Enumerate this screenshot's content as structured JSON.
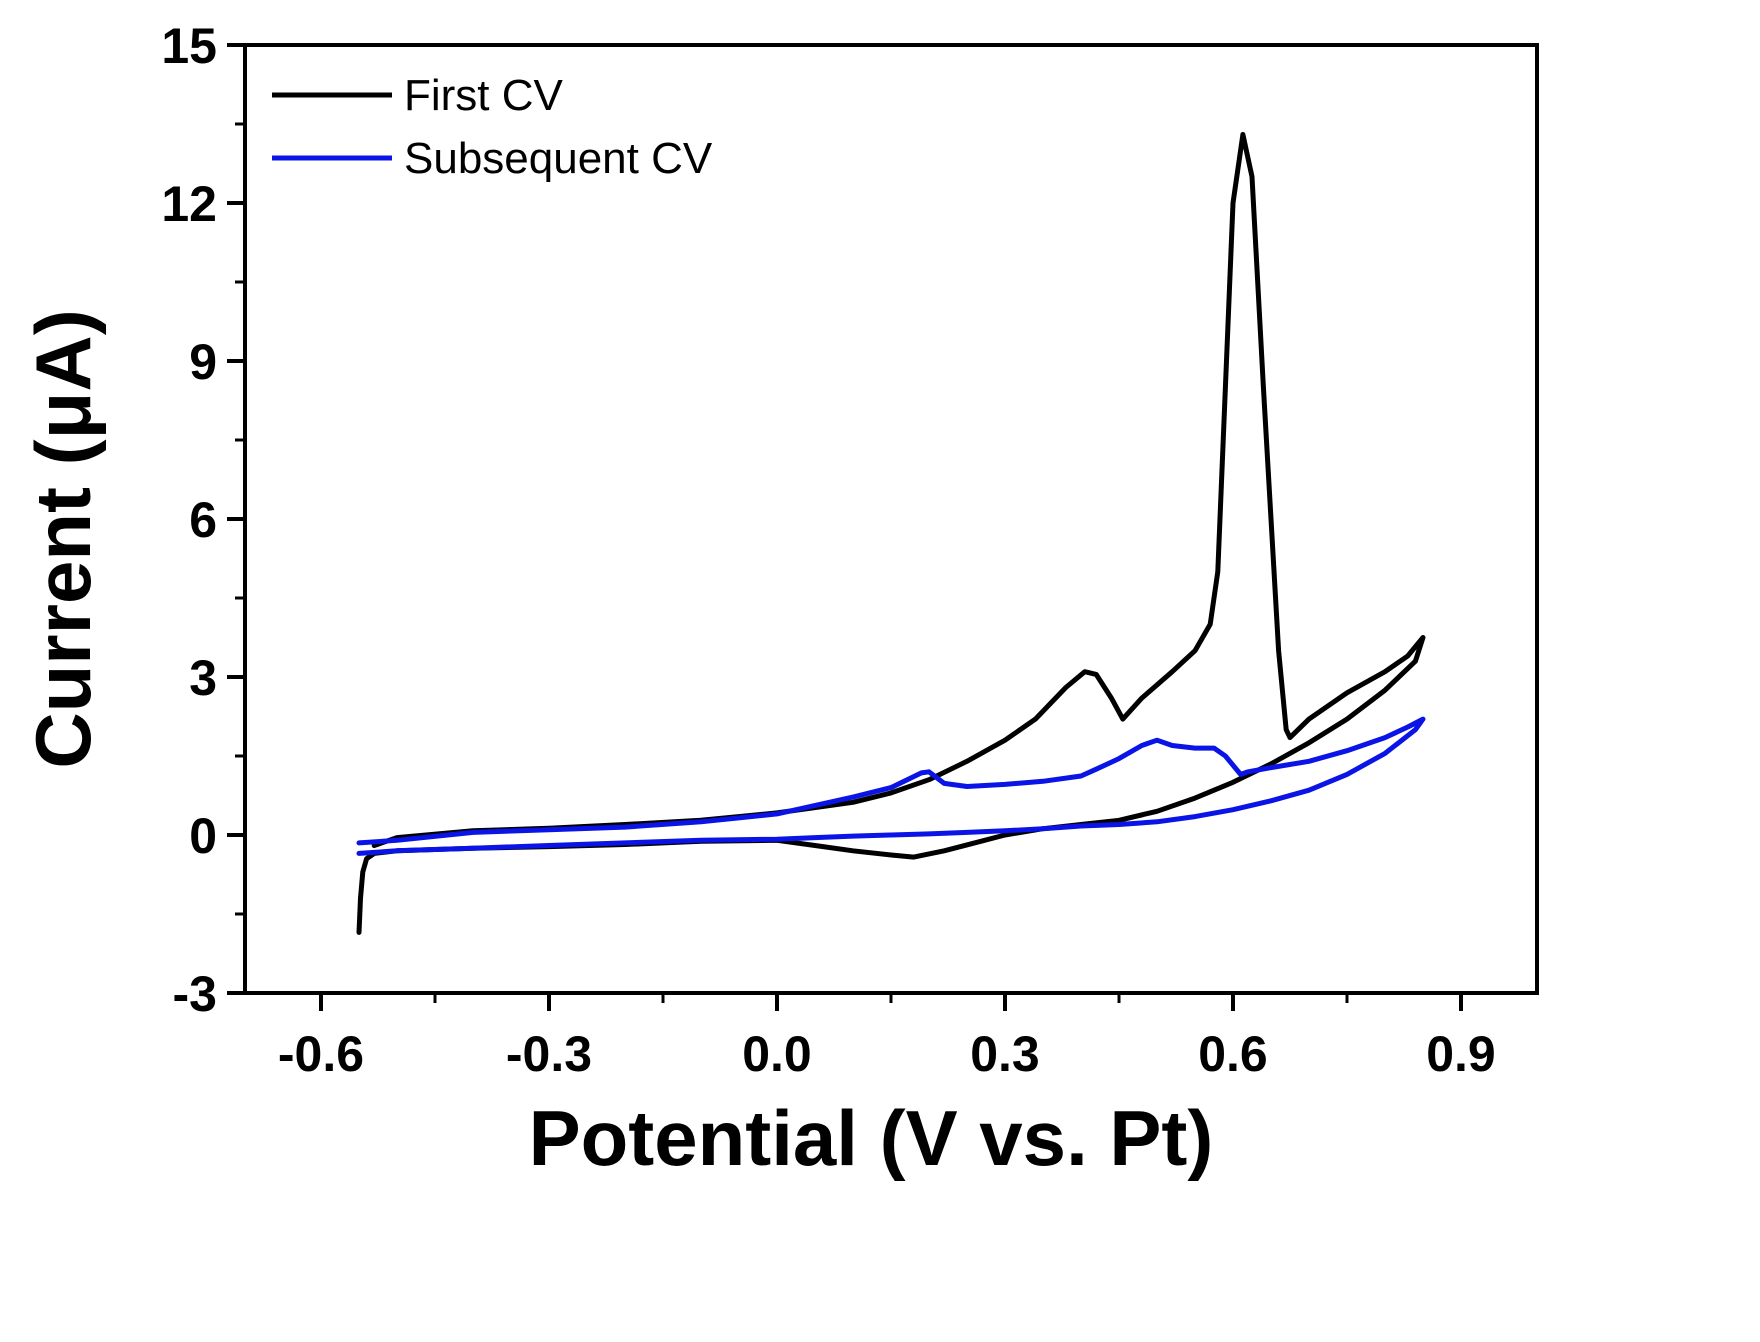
{
  "chart_data": {
    "type": "line",
    "title": "",
    "xlabel": "Potential (V vs. Pt)",
    "ylabel": "Current (μA)",
    "xlim": [
      -0.7,
      1.0
    ],
    "ylim": [
      -3,
      15
    ],
    "xticks": [
      -0.6,
      -0.3,
      0.0,
      0.3,
      0.6,
      0.9
    ],
    "xtick_labels": [
      "-0.6",
      "-0.3",
      "0.0",
      "0.3",
      "0.6",
      "0.9"
    ],
    "yticks": [
      -3,
      0,
      3,
      6,
      9,
      12,
      15
    ],
    "ytick_labels": [
      "-3",
      "0",
      "3",
      "6",
      "9",
      "12",
      "15"
    ],
    "grid": false,
    "legend_position": "top-left",
    "series": [
      {
        "name": "First CV",
        "color": "#000000",
        "points": [
          [
            -0.55,
            -1.85
          ],
          [
            -0.548,
            -1.2
          ],
          [
            -0.545,
            -0.7
          ],
          [
            -0.54,
            -0.45
          ],
          [
            -0.53,
            -0.35
          ],
          [
            -0.5,
            -0.3
          ],
          [
            -0.4,
            -0.25
          ],
          [
            -0.3,
            -0.22
          ],
          [
            -0.2,
            -0.18
          ],
          [
            -0.1,
            -0.12
          ],
          [
            0.0,
            -0.1
          ],
          [
            0.05,
            -0.2
          ],
          [
            0.1,
            -0.3
          ],
          [
            0.15,
            -0.38
          ],
          [
            0.18,
            -0.42
          ],
          [
            0.22,
            -0.3
          ],
          [
            0.26,
            -0.15
          ],
          [
            0.3,
            0.0
          ],
          [
            0.35,
            0.12
          ],
          [
            0.4,
            0.2
          ],
          [
            0.45,
            0.28
          ],
          [
            0.5,
            0.45
          ],
          [
            0.55,
            0.7
          ],
          [
            0.6,
            1.0
          ],
          [
            0.65,
            1.35
          ],
          [
            0.7,
            1.75
          ],
          [
            0.75,
            2.2
          ],
          [
            0.8,
            2.75
          ],
          [
            0.84,
            3.3
          ],
          [
            0.85,
            3.75
          ],
          [
            0.83,
            3.4
          ],
          [
            0.8,
            3.1
          ],
          [
            0.75,
            2.7
          ],
          [
            0.72,
            2.4
          ],
          [
            0.7,
            2.2
          ],
          [
            0.675,
            1.85
          ],
          [
            0.67,
            2.0
          ],
          [
            0.66,
            3.5
          ],
          [
            0.64,
            8.5
          ],
          [
            0.625,
            12.5
          ],
          [
            0.613,
            13.3
          ],
          [
            0.6,
            12.0
          ],
          [
            0.59,
            8.5
          ],
          [
            0.58,
            5.0
          ],
          [
            0.57,
            4.0
          ],
          [
            0.55,
            3.5
          ],
          [
            0.52,
            3.1
          ],
          [
            0.48,
            2.6
          ],
          [
            0.455,
            2.2
          ],
          [
            0.44,
            2.6
          ],
          [
            0.42,
            3.05
          ],
          [
            0.405,
            3.1
          ],
          [
            0.38,
            2.8
          ],
          [
            0.34,
            2.2
          ],
          [
            0.3,
            1.8
          ],
          [
            0.25,
            1.4
          ],
          [
            0.2,
            1.05
          ],
          [
            0.15,
            0.8
          ],
          [
            0.1,
            0.62
          ],
          [
            0.0,
            0.42
          ],
          [
            -0.1,
            0.28
          ],
          [
            -0.2,
            0.2
          ],
          [
            -0.3,
            0.13
          ],
          [
            -0.4,
            0.08
          ],
          [
            -0.5,
            -0.05
          ],
          [
            -0.53,
            -0.2
          ]
        ]
      },
      {
        "name": "Subsequent CV",
        "color": "#0a14e6",
        "points": [
          [
            -0.55,
            -0.35
          ],
          [
            -0.5,
            -0.3
          ],
          [
            -0.4,
            -0.25
          ],
          [
            -0.3,
            -0.2
          ],
          [
            -0.2,
            -0.15
          ],
          [
            -0.1,
            -0.1
          ],
          [
            0.0,
            -0.08
          ],
          [
            0.05,
            -0.05
          ],
          [
            0.1,
            -0.02
          ],
          [
            0.15,
            0.0
          ],
          [
            0.2,
            0.02
          ],
          [
            0.25,
            0.05
          ],
          [
            0.3,
            0.08
          ],
          [
            0.35,
            0.12
          ],
          [
            0.4,
            0.17
          ],
          [
            0.45,
            0.2
          ],
          [
            0.5,
            0.25
          ],
          [
            0.55,
            0.35
          ],
          [
            0.6,
            0.48
          ],
          [
            0.65,
            0.65
          ],
          [
            0.7,
            0.85
          ],
          [
            0.75,
            1.15
          ],
          [
            0.8,
            1.55
          ],
          [
            0.84,
            2.0
          ],
          [
            0.85,
            2.2
          ],
          [
            0.83,
            2.05
          ],
          [
            0.8,
            1.85
          ],
          [
            0.75,
            1.6
          ],
          [
            0.7,
            1.4
          ],
          [
            0.65,
            1.28
          ],
          [
            0.62,
            1.2
          ],
          [
            0.61,
            1.15
          ],
          [
            0.59,
            1.5
          ],
          [
            0.575,
            1.65
          ],
          [
            0.55,
            1.65
          ],
          [
            0.52,
            1.7
          ],
          [
            0.5,
            1.8
          ],
          [
            0.48,
            1.7
          ],
          [
            0.45,
            1.45
          ],
          [
            0.42,
            1.25
          ],
          [
            0.4,
            1.12
          ],
          [
            0.35,
            1.02
          ],
          [
            0.3,
            0.96
          ],
          [
            0.25,
            0.92
          ],
          [
            0.22,
            0.98
          ],
          [
            0.2,
            1.2
          ],
          [
            0.19,
            1.18
          ],
          [
            0.15,
            0.9
          ],
          [
            0.1,
            0.72
          ],
          [
            0.0,
            0.4
          ],
          [
            -0.1,
            0.25
          ],
          [
            -0.2,
            0.15
          ],
          [
            -0.3,
            0.1
          ],
          [
            -0.4,
            0.05
          ],
          [
            -0.5,
            -0.1
          ],
          [
            -0.55,
            -0.15
          ]
        ]
      }
    ]
  }
}
